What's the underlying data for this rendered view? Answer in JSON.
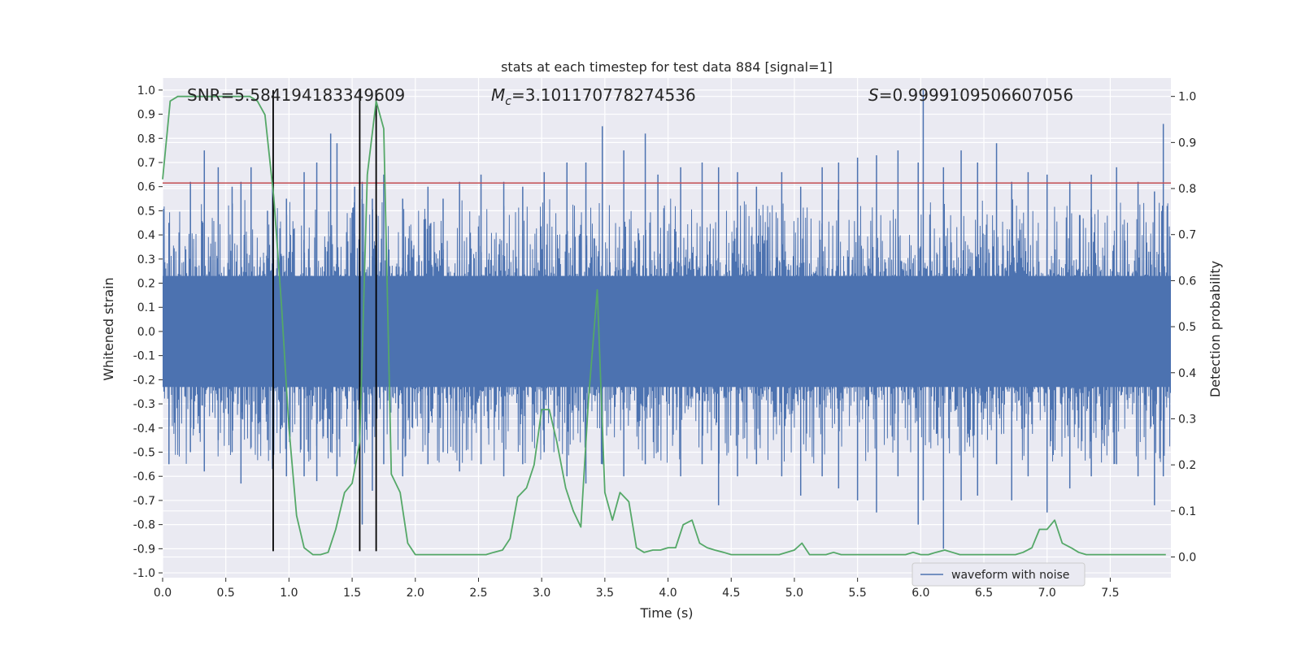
{
  "chart_data": {
    "type": "line",
    "title": "stats at each timestep for test data 884 [signal=1]",
    "xlabel": "Time (s)",
    "ylabel": "Whitened strain",
    "ylabel_right": "Detection probability",
    "xlim": [
      0.0,
      7.98
    ],
    "ylim": [
      -1.02,
      1.05
    ],
    "ylim_right": [
      -0.045,
      1.04
    ],
    "x_ticks": [
      "0.0",
      "0.5",
      "1.0",
      "1.5",
      "2.0",
      "2.5",
      "3.0",
      "3.5",
      "4.0",
      "4.5",
      "5.0",
      "5.5",
      "6.0",
      "6.5",
      "7.0",
      "7.5"
    ],
    "y_ticks": [
      "-1.0",
      "-0.9",
      "-0.8",
      "-0.7",
      "-0.6",
      "-0.5",
      "-0.4",
      "-0.3",
      "-0.2",
      "-0.1",
      "0.0",
      "0.1",
      "0.2",
      "0.3",
      "0.4",
      "0.5",
      "0.6",
      "0.7",
      "0.8",
      "0.9",
      "1.0"
    ],
    "y_ticks_right": [
      "0.0",
      "0.1",
      "0.2",
      "0.3",
      "0.4",
      "0.5",
      "0.6",
      "0.7",
      "0.8",
      "0.9",
      "1.0"
    ],
    "grid": true,
    "legend_position": "lower-right",
    "annotations": {
      "snr": "SNR=5.584194183349609",
      "mc_symbol": "M",
      "mc_sub": "c",
      "mc_value": "=3.101170778274536",
      "s_symbol": "S",
      "s_value": "=0.9999109506607056"
    },
    "threshold_line": {
      "y": 0.615,
      "color": "#c44e52"
    },
    "vertical_lines": {
      "x": [
        0.875,
        1.56,
        1.69
      ],
      "ymin": -0.91,
      "ymax": 1.0,
      "color": "#000000"
    },
    "series": [
      {
        "name": "waveform with noise",
        "color": "#4c72b0",
        "band": 0.23,
        "spikes": [
          [
            0.05,
            0.45,
            -0.55
          ],
          [
            0.22,
            0.62,
            -0.5
          ],
          [
            0.33,
            0.75,
            -0.58
          ],
          [
            0.44,
            0.68,
            -0.45
          ],
          [
            0.55,
            0.6,
            -0.5
          ],
          [
            0.62,
            0.62,
            -0.63
          ],
          [
            0.7,
            0.68,
            -0.48
          ],
          [
            0.83,
            0.5,
            -0.45
          ],
          [
            0.87,
            0.62,
            -0.57
          ],
          [
            0.98,
            0.55,
            -0.6
          ],
          [
            1.12,
            0.66,
            -0.6
          ],
          [
            1.22,
            0.7,
            -0.62
          ],
          [
            1.33,
            0.82,
            -0.5
          ],
          [
            1.38,
            0.78,
            -0.6
          ],
          [
            1.52,
            0.6,
            -0.55
          ],
          [
            1.58,
            0.62,
            -0.8
          ],
          [
            1.66,
            0.55,
            -0.66
          ],
          [
            1.75,
            0.65,
            -0.55
          ],
          [
            1.9,
            0.55,
            -0.6
          ],
          [
            2.1,
            0.6,
            -0.55
          ],
          [
            2.22,
            0.55,
            -0.5
          ],
          [
            2.35,
            0.62,
            -0.58
          ],
          [
            2.52,
            0.65,
            -0.55
          ],
          [
            2.7,
            0.62,
            -0.6
          ],
          [
            2.85,
            0.6,
            -0.55
          ],
          [
            3.02,
            0.66,
            -0.5
          ],
          [
            3.2,
            0.7,
            -0.6
          ],
          [
            3.35,
            0.7,
            -0.63
          ],
          [
            3.48,
            0.85,
            -0.55
          ],
          [
            3.65,
            0.75,
            -0.6
          ],
          [
            3.82,
            0.82,
            -0.55
          ],
          [
            3.92,
            0.65,
            -0.5
          ],
          [
            4.1,
            0.68,
            -0.6
          ],
          [
            4.27,
            0.7,
            -0.55
          ],
          [
            4.4,
            0.68,
            -0.72
          ],
          [
            4.55,
            0.66,
            -0.6
          ],
          [
            4.7,
            0.6,
            -0.55
          ],
          [
            4.9,
            0.66,
            -0.6
          ],
          [
            5.05,
            0.6,
            -0.68
          ],
          [
            5.22,
            0.68,
            -0.6
          ],
          [
            5.35,
            0.7,
            -0.65
          ],
          [
            5.5,
            0.72,
            -0.7
          ],
          [
            5.65,
            0.73,
            -0.75
          ],
          [
            5.82,
            0.75,
            -0.6
          ],
          [
            5.98,
            0.7,
            -0.8
          ],
          [
            6.02,
            1.0,
            -0.7
          ],
          [
            6.18,
            0.68,
            -0.9
          ],
          [
            6.32,
            0.75,
            -0.7
          ],
          [
            6.45,
            0.7,
            -0.68
          ],
          [
            6.6,
            0.78,
            -0.55
          ],
          [
            6.72,
            0.62,
            -0.7
          ],
          [
            6.85,
            0.66,
            -0.6
          ],
          [
            7.0,
            0.65,
            -0.75
          ],
          [
            7.18,
            0.62,
            -0.65
          ],
          [
            7.35,
            0.65,
            -0.6
          ],
          [
            7.55,
            0.68,
            -0.55
          ],
          [
            7.72,
            0.62,
            -0.6
          ],
          [
            7.85,
            0.58,
            -0.72
          ],
          [
            7.92,
            0.86,
            -0.6
          ]
        ]
      },
      {
        "name": "",
        "color": "#55a868",
        "axis": "right",
        "x": [
          0.0,
          0.06,
          0.12,
          0.19,
          0.25,
          0.31,
          0.37,
          0.44,
          0.5,
          0.56,
          0.62,
          0.69,
          0.75,
          0.81,
          0.88,
          0.94,
          1.0,
          1.06,
          1.12,
          1.19,
          1.25,
          1.31,
          1.37,
          1.44,
          1.5,
          1.56,
          1.62,
          1.69,
          1.75,
          1.81,
          1.88,
          1.94,
          2.0,
          2.06,
          2.12,
          2.19,
          2.25,
          2.31,
          2.37,
          2.44,
          2.5,
          2.56,
          2.62,
          2.69,
          2.75,
          2.81,
          2.88,
          2.94,
          3.0,
          3.06,
          3.12,
          3.19,
          3.25,
          3.31,
          3.37,
          3.44,
          3.5,
          3.56,
          3.62,
          3.69,
          3.75,
          3.81,
          3.88,
          3.94,
          4.0,
          4.06,
          4.12,
          4.19,
          4.25,
          4.31,
          4.37,
          4.44,
          4.5,
          4.62,
          4.75,
          4.88,
          5.0,
          5.06,
          5.12,
          5.19,
          5.25,
          5.31,
          5.37,
          5.44,
          5.5,
          5.62,
          5.75,
          5.88,
          5.94,
          6.0,
          6.06,
          6.12,
          6.19,
          6.25,
          6.31,
          6.37,
          6.44,
          6.5,
          6.62,
          6.75,
          6.81,
          6.88,
          6.94,
          7.0,
          7.06,
          7.12,
          7.19,
          7.25,
          7.31,
          7.37,
          7.44,
          7.5,
          7.62,
          7.75,
          7.88,
          7.94
        ],
        "values": [
          0.82,
          0.99,
          1.0,
          1.0,
          1.0,
          1.0,
          1.0,
          1.0,
          1.0,
          1.0,
          1.0,
          1.0,
          0.99,
          0.96,
          0.78,
          0.55,
          0.28,
          0.09,
          0.02,
          0.005,
          0.005,
          0.01,
          0.06,
          0.14,
          0.16,
          0.25,
          0.83,
          0.99,
          0.93,
          0.18,
          0.14,
          0.03,
          0.005,
          0.005,
          0.005,
          0.005,
          0.005,
          0.005,
          0.005,
          0.005,
          0.005,
          0.005,
          0.01,
          0.015,
          0.04,
          0.13,
          0.15,
          0.2,
          0.32,
          0.32,
          0.25,
          0.15,
          0.1,
          0.065,
          0.34,
          0.58,
          0.14,
          0.08,
          0.14,
          0.12,
          0.02,
          0.01,
          0.015,
          0.015,
          0.02,
          0.02,
          0.07,
          0.08,
          0.03,
          0.02,
          0.015,
          0.01,
          0.005,
          0.005,
          0.005,
          0.005,
          0.015,
          0.03,
          0.005,
          0.005,
          0.005,
          0.01,
          0.005,
          0.005,
          0.005,
          0.005,
          0.005,
          0.005,
          0.01,
          0.005,
          0.005,
          0.01,
          0.015,
          0.01,
          0.005,
          0.005,
          0.005,
          0.005,
          0.005,
          0.005,
          0.01,
          0.02,
          0.06,
          0.06,
          0.08,
          0.03,
          0.02,
          0.01,
          0.005,
          0.005,
          0.005,
          0.005,
          0.005,
          0.005,
          0.005,
          0.005
        ]
      }
    ]
  }
}
